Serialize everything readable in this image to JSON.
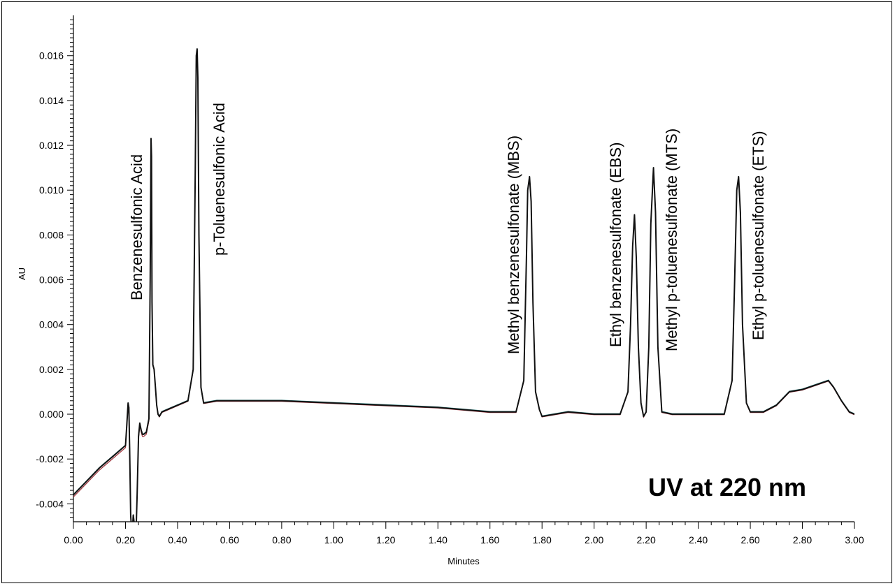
{
  "chart_data": {
    "type": "line",
    "title": "",
    "xlabel": "Minutes",
    "ylabel": "AU",
    "xlim": [
      0.0,
      3.0
    ],
    "ylim": [
      -0.0048,
      0.0178
    ],
    "x_ticks": [
      "0.00",
      "0.20",
      "0.40",
      "0.60",
      "0.80",
      "1.00",
      "1.20",
      "1.40",
      "1.60",
      "1.80",
      "2.00",
      "2.20",
      "2.40",
      "2.60",
      "2.80",
      "3.00"
    ],
    "y_ticks": [
      "-0.004",
      "-0.002",
      "0.000",
      "0.002",
      "0.004",
      "0.006",
      "0.008",
      "0.010",
      "0.012",
      "0.014",
      "0.016"
    ],
    "grid": false,
    "annotation": "UV at 220 nm",
    "peaks": [
      {
        "name": "Benzenesulfonic Acid",
        "time": 0.3,
        "height": 0.0123
      },
      {
        "name": "p-Toluenesulfonic Acid",
        "time": 0.475,
        "height": 0.0163
      },
      {
        "name": "Methyl benzenesulfonate (MBS)",
        "time": 1.752,
        "height": 0.0106
      },
      {
        "name": "Ethyl benzenesulfonate (EBS)",
        "time": 2.155,
        "height": 0.0089
      },
      {
        "name": "Methyl p-toluenesulfonate (MTS)",
        "time": 2.228,
        "height": 0.011
      },
      {
        "name": "Ethyl p-toluenesulfonate (ETS)",
        "time": 2.555,
        "height": 0.0106
      }
    ],
    "series": [
      {
        "color": "#111111",
        "x": [
          0.0,
          0.05,
          0.1,
          0.15,
          0.2,
          0.205,
          0.21,
          0.213,
          0.216,
          0.22,
          0.225,
          0.23,
          0.235,
          0.24,
          0.245,
          0.25,
          0.255,
          0.26,
          0.265,
          0.27,
          0.28,
          0.29,
          0.295,
          0.298,
          0.3,
          0.302,
          0.305,
          0.31,
          0.315,
          0.32,
          0.325,
          0.33,
          0.34,
          0.36,
          0.4,
          0.44,
          0.46,
          0.468,
          0.472,
          0.475,
          0.478,
          0.482,
          0.49,
          0.5,
          0.55,
          0.6,
          0.8,
          1.0,
          1.2,
          1.4,
          1.6,
          1.7,
          1.73,
          1.74,
          1.745,
          1.752,
          1.758,
          1.765,
          1.775,
          1.79,
          1.8,
          1.85,
          1.9,
          2.0,
          2.1,
          2.13,
          2.14,
          2.148,
          2.155,
          2.162,
          2.17,
          2.18,
          2.19,
          2.2,
          2.21,
          2.218,
          2.228,
          2.236,
          2.245,
          2.26,
          2.3,
          2.4,
          2.5,
          2.53,
          2.54,
          2.548,
          2.555,
          2.562,
          2.57,
          2.585,
          2.6,
          2.65,
          2.7,
          2.75,
          2.8,
          2.85,
          2.9,
          2.92,
          2.95,
          2.98,
          3.0
        ],
        "y": [
          -0.0036,
          -0.003,
          -0.0024,
          -0.0019,
          -0.0014,
          -0.0005,
          0.0005,
          0.0003,
          -0.0015,
          -0.0045,
          -0.0055,
          -0.0045,
          -0.005,
          -0.0055,
          -0.0035,
          -0.001,
          -0.0004,
          -0.0007,
          -0.0009,
          -0.0009,
          -0.0008,
          -0.0002,
          0.006,
          0.0123,
          0.0115,
          0.005,
          0.0022,
          0.002,
          0.0012,
          0.0004,
          0.0,
          -0.0001,
          0.0001,
          0.0002,
          0.0004,
          0.0006,
          0.002,
          0.011,
          0.016,
          0.0163,
          0.015,
          0.008,
          0.0012,
          0.0005,
          0.0006,
          0.0006,
          0.0006,
          0.0005,
          0.0004,
          0.0003,
          0.0001,
          0.0001,
          0.0015,
          0.007,
          0.01,
          0.0106,
          0.0095,
          0.005,
          0.001,
          0.0002,
          -0.0001,
          0.0,
          0.0001,
          0.0,
          0.0,
          0.001,
          0.004,
          0.0075,
          0.0089,
          0.007,
          0.003,
          0.0005,
          -0.0001,
          0.0001,
          0.003,
          0.0085,
          0.011,
          0.009,
          0.003,
          0.0001,
          0.0,
          0.0,
          0.0,
          0.0015,
          0.006,
          0.01,
          0.0106,
          0.009,
          0.004,
          0.0005,
          0.0001,
          0.0001,
          0.0004,
          0.001,
          0.0011,
          0.0013,
          0.0015,
          0.0012,
          0.0006,
          0.0001,
          0.0
        ]
      }
    ]
  }
}
